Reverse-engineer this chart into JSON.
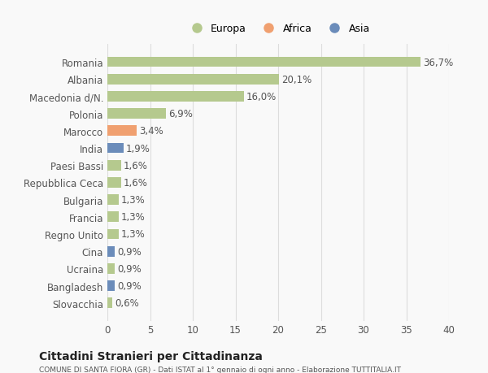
{
  "categories": [
    "Romania",
    "Albania",
    "Macedonia d/N.",
    "Polonia",
    "Marocco",
    "India",
    "Paesi Bassi",
    "Repubblica Ceca",
    "Bulgaria",
    "Francia",
    "Regno Unito",
    "Cina",
    "Ucraina",
    "Bangladesh",
    "Slovacchia"
  ],
  "values": [
    36.7,
    20.1,
    16.0,
    6.9,
    3.4,
    1.9,
    1.6,
    1.6,
    1.3,
    1.3,
    1.3,
    0.9,
    0.9,
    0.9,
    0.6
  ],
  "labels": [
    "36,7%",
    "20,1%",
    "16,0%",
    "6,9%",
    "3,4%",
    "1,9%",
    "1,6%",
    "1,6%",
    "1,3%",
    "1,3%",
    "1,3%",
    "0,9%",
    "0,9%",
    "0,9%",
    "0,6%"
  ],
  "colors": [
    "#b5c98e",
    "#b5c98e",
    "#b5c98e",
    "#b5c98e",
    "#f0a070",
    "#6b8cba",
    "#b5c98e",
    "#b5c98e",
    "#b5c98e",
    "#b5c98e",
    "#b5c98e",
    "#6b8cba",
    "#b5c98e",
    "#6b8cba",
    "#b5c98e"
  ],
  "legend_labels": [
    "Europa",
    "Africa",
    "Asia"
  ],
  "legend_colors": [
    "#b5c98e",
    "#f0a070",
    "#6b8cba"
  ],
  "title": "Cittadini Stranieri per Cittadinanza",
  "subtitle": "COMUNE DI SANTA FIORA (GR) - Dati ISTAT al 1° gennaio di ogni anno - Elaborazione TUTTITALIA.IT",
  "xlim": [
    0,
    40
  ],
  "xticks": [
    0,
    5,
    10,
    15,
    20,
    25,
    30,
    35,
    40
  ],
  "background_color": "#f9f9f9",
  "grid_color": "#dddddd",
  "bar_height": 0.6,
  "label_fontsize": 8.5,
  "tick_fontsize": 8.5
}
